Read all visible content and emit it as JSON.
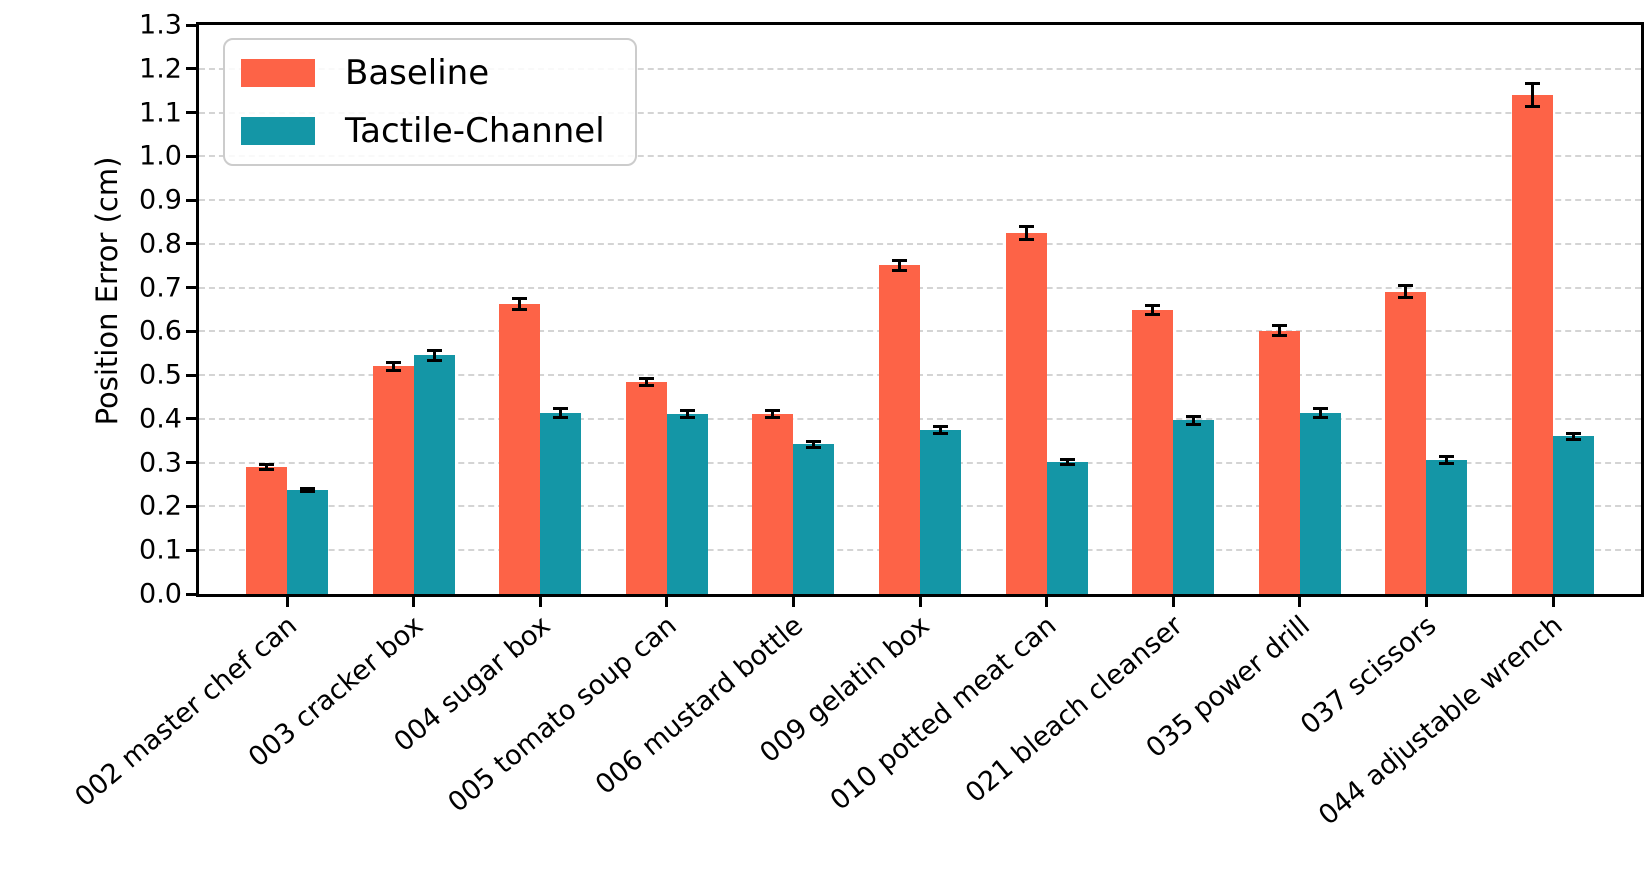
{
  "chart_data": {
    "type": "bar",
    "title": "",
    "xlabel": "",
    "ylabel": "Position Error (cm)",
    "ylim": [
      0,
      1.3
    ],
    "ytick_step": 0.1,
    "ytick_labels": [
      "0.0",
      "0.1",
      "0.2",
      "0.3",
      "0.4",
      "0.5",
      "0.6",
      "0.7",
      "0.8",
      "0.9",
      "1.0",
      "1.1",
      "1.2",
      "1.3"
    ],
    "grid": "horizontal dashed gridlines at every 0.1",
    "legend_position": "upper-left",
    "error_bars": true,
    "categories": [
      "002 master chef can",
      "003 cracker box",
      "004 sugar box",
      "005 tomato soup can",
      "006 mustard bottle",
      "009 gelatin box",
      "010 potted meat can",
      "021 bleach cleanser",
      "035 power drill",
      "037 scissors",
      "044 adjustable wrench"
    ],
    "series": [
      {
        "name": "Baseline",
        "color": "#FD6347",
        "values": [
          0.29,
          0.52,
          0.662,
          0.485,
          0.411,
          0.751,
          0.825,
          0.648,
          0.602,
          0.691,
          1.14
        ],
        "errors": [
          0.005,
          0.01,
          0.013,
          0.008,
          0.008,
          0.012,
          0.015,
          0.01,
          0.011,
          0.013,
          0.027
        ]
      },
      {
        "name": "Tactile-Channel",
        "color": "#1496A6",
        "values": [
          0.238,
          0.545,
          0.413,
          0.411,
          0.342,
          0.375,
          0.302,
          0.397,
          0.413,
          0.306,
          0.36
        ],
        "errors": [
          0.004,
          0.012,
          0.01,
          0.008,
          0.007,
          0.008,
          0.006,
          0.009,
          0.01,
          0.008,
          0.007
        ]
      }
    ],
    "style": {
      "gridline_color": "#d4d4d4",
      "axis_color": "#000000",
      "errorbar_color": "#000000",
      "xtick_label_rotation_deg": 40
    }
  }
}
